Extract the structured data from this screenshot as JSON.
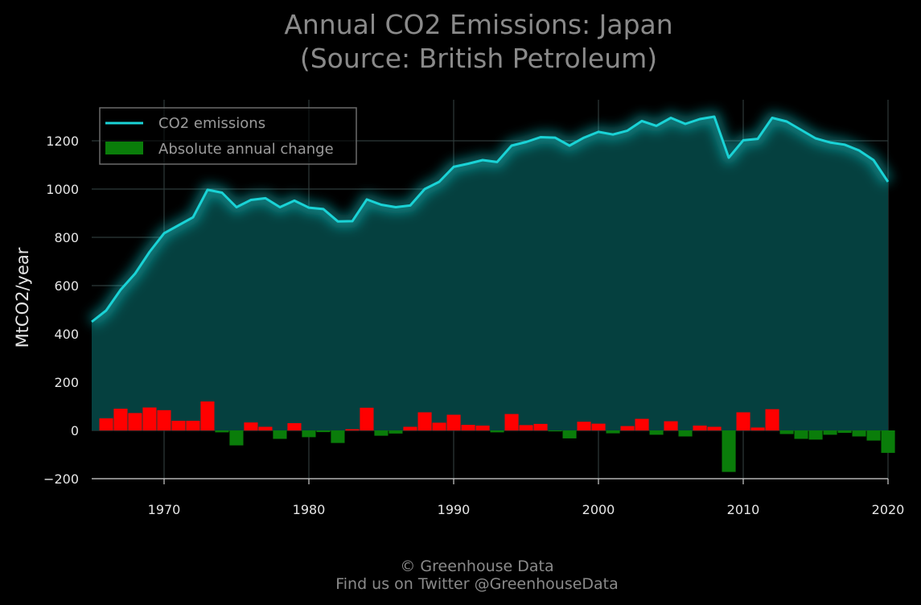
{
  "title_line1": "Annual CO2 Emissions: Japan",
  "title_line2": "(Source: British Petroleum)",
  "footer_line1": "© Greenhouse Data",
  "footer_line2": "Find us on Twitter @GreenhouseData",
  "colors": {
    "background": "#000000",
    "line": "#1ad3d6",
    "area": "#05403f",
    "increase": "#ff0000",
    "decrease": "#0a7d0a",
    "grid": "#2e3a3a"
  },
  "chart_data": {
    "type": "line",
    "title": "Annual CO2 Emissions: Japan\n(Source: British Petroleum)",
    "xlabel": "",
    "ylabel": "MtCO2/year",
    "xlim": [
      1965,
      2020
    ],
    "ylim": [
      -200,
      1380
    ],
    "x_ticks": [
      "1970",
      "1980",
      "1990",
      "2000",
      "2010",
      "2020"
    ],
    "y_ticks": [
      "−200",
      "0",
      "200",
      "400",
      "600",
      "800",
      "1000",
      "1200"
    ],
    "grid": true,
    "legend_placement": "top-left",
    "series": [
      {
        "name": "CO2 emissions",
        "kind": "line",
        "x": [
          1965,
          1966,
          1967,
          1968,
          1969,
          1970,
          1971,
          1972,
          1973,
          1974,
          1975,
          1976,
          1977,
          1978,
          1979,
          1980,
          1981,
          1982,
          1983,
          1984,
          1985,
          1986,
          1987,
          1988,
          1989,
          1990,
          1991,
          1992,
          1993,
          1994,
          1995,
          1996,
          1997,
          1998,
          1999,
          2000,
          2001,
          2002,
          2003,
          2004,
          2005,
          2006,
          2007,
          2008,
          2009,
          2010,
          2011,
          2012,
          2013,
          2014,
          2015,
          2016,
          2017,
          2018,
          2019,
          2020
        ],
        "values": [
          450,
          497,
          583,
          650,
          740,
          817,
          850,
          883,
          997,
          985,
          925,
          955,
          962,
          925,
          952,
          923,
          917,
          866,
          867,
          957,
          935,
          925,
          932,
          1000,
          1030,
          1092,
          1105,
          1120,
          1112,
          1180,
          1195,
          1215,
          1213,
          1180,
          1213,
          1237,
          1226,
          1242,
          1282,
          1262,
          1295,
          1270,
          1290,
          1300,
          1130,
          1202,
          1208,
          1295,
          1280,
          1245,
          1210,
          1193,
          1184,
          1160,
          1120,
          1030
        ]
      },
      {
        "name": "Absolute annual change",
        "kind": "bar",
        "x": [
          1966,
          1967,
          1968,
          1969,
          1970,
          1971,
          1972,
          1973,
          1974,
          1975,
          1976,
          1977,
          1978,
          1979,
          1980,
          1981,
          1982,
          1983,
          1984,
          1985,
          1986,
          1987,
          1988,
          1989,
          1990,
          1991,
          1992,
          1993,
          1994,
          1995,
          1996,
          1997,
          1998,
          1999,
          2000,
          2001,
          2002,
          2003,
          2004,
          2005,
          2006,
          2007,
          2008,
          2009,
          2010,
          2011,
          2012,
          2013,
          2014,
          2015,
          2016,
          2017,
          2018,
          2019,
          2020
        ],
        "values": [
          50,
          90,
          72,
          95,
          84,
          40,
          40,
          120,
          -8,
          -62,
          33,
          15,
          -35,
          30,
          -28,
          -7,
          -52,
          5,
          94,
          -22,
          -13,
          15,
          75,
          32,
          65,
          23,
          20,
          -8,
          68,
          22,
          27,
          -4,
          -33,
          36,
          28,
          -12,
          18,
          48,
          -18,
          38,
          -25,
          20,
          15,
          -172,
          75,
          12,
          88,
          -15,
          -35,
          -38,
          -18,
          -10,
          -25,
          -42,
          -93
        ]
      }
    ]
  }
}
